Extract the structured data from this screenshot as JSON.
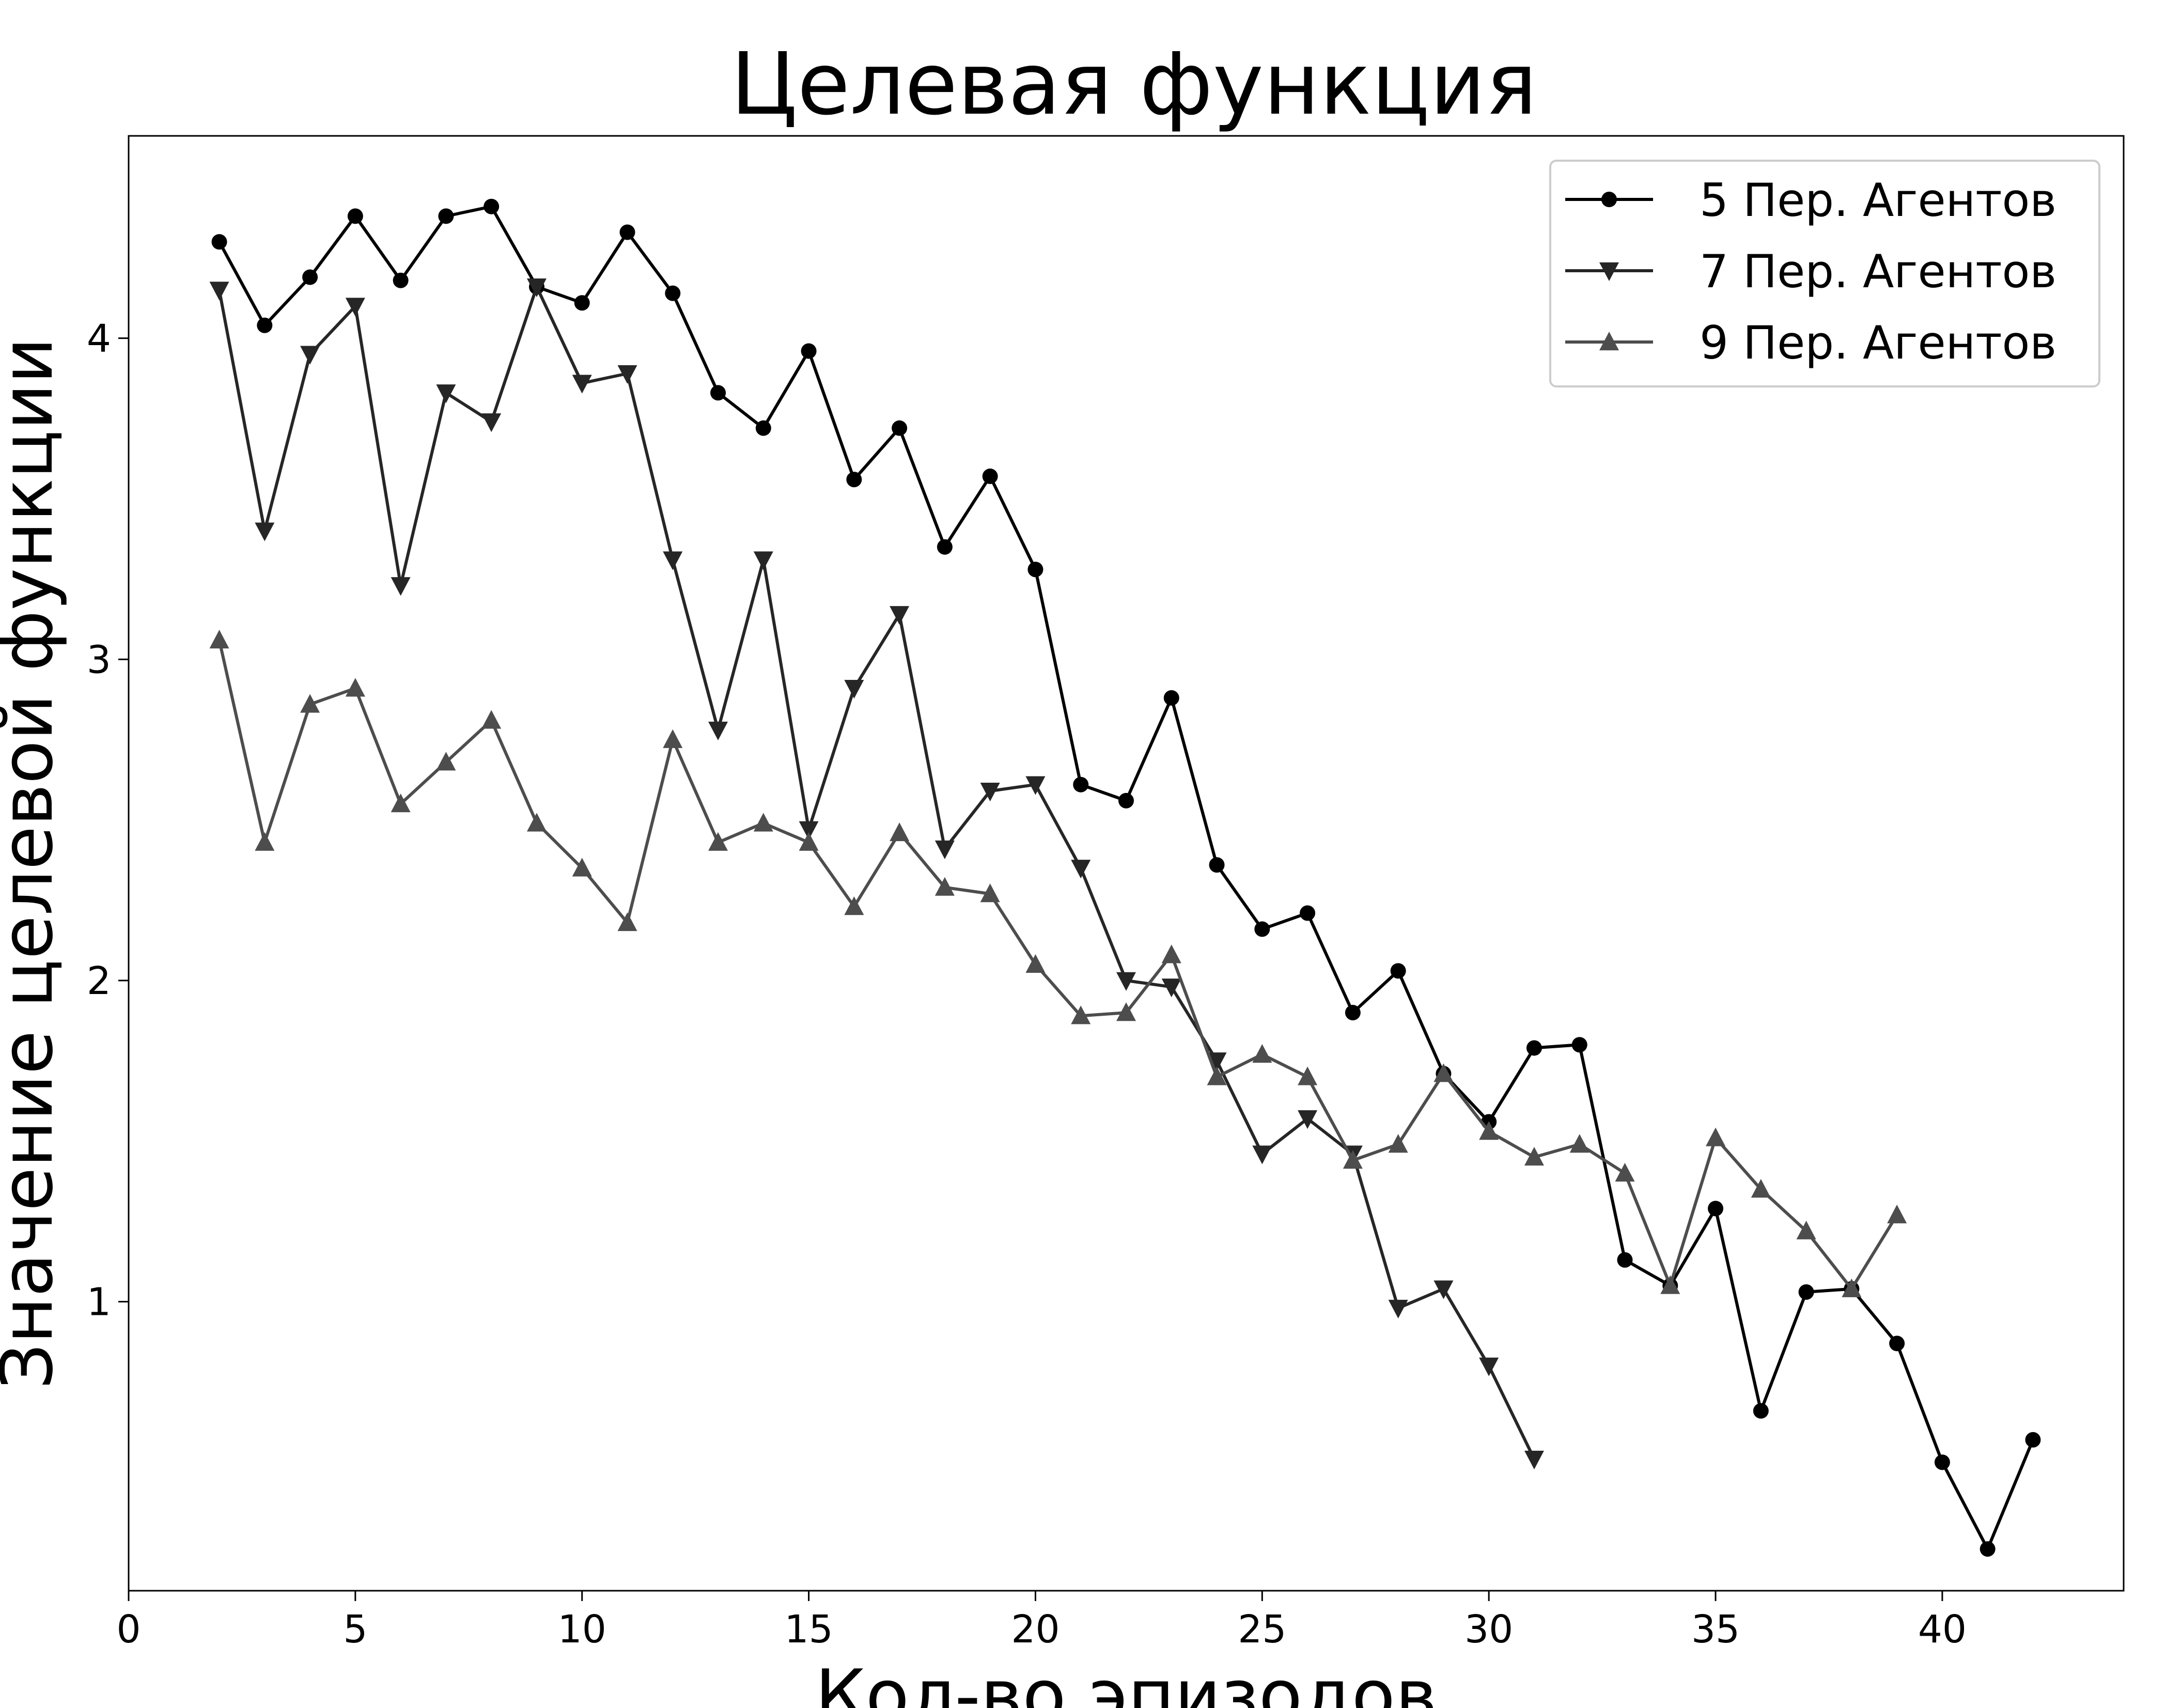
{
  "chart_data": {
    "type": "line",
    "title": "Целевая функция",
    "xlabel": "Кол-во эпизодов",
    "ylabel": "Значение целевой функции",
    "xlim": [
      0,
      44
    ],
    "ylim": [
      0.1,
      4.63
    ],
    "xticks": [
      0,
      5,
      10,
      15,
      20,
      25,
      30,
      35,
      40
    ],
    "yticks": [
      1,
      2,
      3,
      4
    ],
    "grid": false,
    "legend_position": "top-right",
    "series": [
      {
        "name": "5 Пер. Агентов",
        "color": "#000000",
        "marker": "circle",
        "x": [
          2,
          3,
          4,
          5,
          6,
          7,
          8,
          9,
          10,
          11,
          12,
          13,
          14,
          15,
          16,
          17,
          18,
          19,
          20,
          21,
          22,
          23,
          24,
          25,
          26,
          27,
          28,
          29,
          30,
          31,
          32,
          33,
          34,
          35,
          36,
          37,
          38,
          39,
          40,
          41,
          42
        ],
        "y": [
          4.3,
          4.04,
          4.19,
          4.38,
          4.18,
          4.38,
          4.41,
          4.16,
          4.11,
          4.33,
          4.14,
          3.83,
          3.72,
          3.96,
          3.56,
          3.72,
          3.35,
          3.57,
          3.28,
          2.61,
          2.56,
          2.88,
          2.36,
          2.16,
          2.21,
          1.9,
          2.03,
          1.71,
          1.56,
          1.79,
          1.8,
          1.13,
          1.05,
          1.29,
          0.66,
          1.03,
          1.04,
          0.87,
          0.5,
          0.23,
          0.57
        ]
      },
      {
        "name": "7 Пер. Агентов",
        "color": "#262626",
        "marker": "triangle-down",
        "x": [
          2,
          3,
          4,
          5,
          6,
          7,
          8,
          9,
          10,
          11,
          12,
          13,
          14,
          15,
          16,
          17,
          18,
          19,
          20,
          21,
          22,
          23,
          24,
          25,
          26,
          27,
          28,
          29,
          30,
          31
        ],
        "y": [
          4.15,
          3.4,
          3.95,
          4.1,
          3.23,
          3.83,
          3.74,
          4.16,
          3.86,
          3.89,
          3.31,
          2.78,
          3.31,
          2.47,
          2.91,
          3.14,
          2.41,
          2.59,
          2.61,
          2.35,
          2.0,
          1.98,
          1.75,
          1.46,
          1.57,
          1.46,
          0.98,
          1.04,
          0.8,
          0.51
        ]
      },
      {
        "name": "9 Пер. Агентов",
        "color": "#4d4d4d",
        "marker": "triangle-up",
        "x": [
          2,
          3,
          4,
          5,
          6,
          7,
          8,
          9,
          10,
          11,
          12,
          13,
          14,
          15,
          16,
          17,
          18,
          19,
          20,
          21,
          22,
          23,
          24,
          25,
          26,
          27,
          28,
          29,
          30,
          31,
          32,
          33,
          34,
          35,
          36,
          37,
          38,
          39
        ],
        "y": [
          3.06,
          2.43,
          2.86,
          2.91,
          2.55,
          2.68,
          2.81,
          2.49,
          2.35,
          2.18,
          2.75,
          2.43,
          2.49,
          2.43,
          2.23,
          2.46,
          2.29,
          2.27,
          2.05,
          1.89,
          1.9,
          2.08,
          1.7,
          1.77,
          1.7,
          1.44,
          1.49,
          1.71,
          1.53,
          1.45,
          1.49,
          1.4,
          1.05,
          1.51,
          1.35,
          1.22,
          1.04,
          1.27
        ]
      }
    ]
  }
}
